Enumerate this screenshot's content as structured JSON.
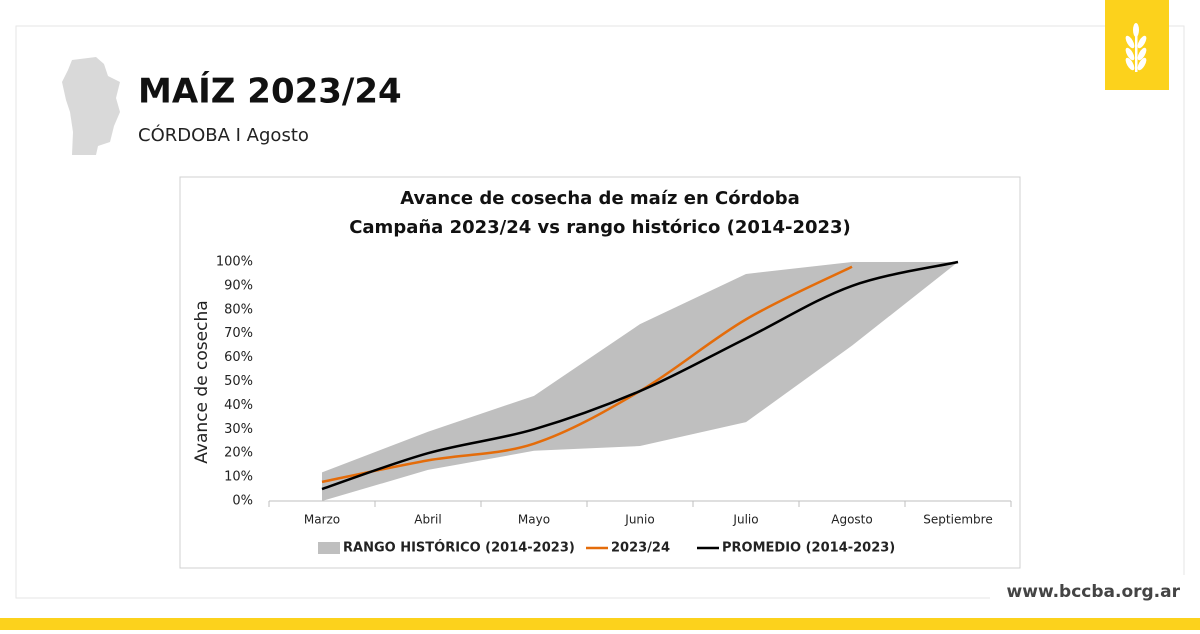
{
  "header": {
    "title": "MAÍZ 2023/24",
    "subtitle": "CÓRDOBA I Agosto"
  },
  "footer": {
    "url": "www.bccba.org.ar"
  },
  "chart_data": {
    "type": "line",
    "title": "Avance de cosecha de maíz en Córdoba",
    "subtitle": "Campaña 2023/24 vs rango histórico (2014-2023)",
    "y_label": "Avance de cosecha",
    "categories": [
      "Marzo",
      "Abril",
      "Mayo",
      "Junio",
      "Julio",
      "Agosto",
      "Septiembre"
    ],
    "series": [
      {
        "name": "RANGO HISTÓRICO (2014-2023)",
        "color": "#bfbfbf",
        "low": [
          0,
          13,
          21,
          23,
          33,
          65,
          100
        ],
        "high": [
          12,
          29,
          44,
          74,
          95,
          100,
          100
        ]
      },
      {
        "name": "2023/24",
        "color": "#e46c0a",
        "values": [
          8,
          17,
          24,
          46,
          76,
          98,
          null
        ]
      },
      {
        "name": "PROMEDIO (2014-2023)",
        "color": "#000000",
        "values": [
          5,
          20,
          30,
          46,
          68,
          90,
          100
        ]
      }
    ],
    "ylim": [
      0,
      100
    ],
    "yticks": [
      {
        "value": 0,
        "label": "0%"
      },
      {
        "value": 10,
        "label": "10%"
      },
      {
        "value": 20,
        "label": "20%"
      },
      {
        "value": 30,
        "label": "30%"
      },
      {
        "value": 40,
        "label": "40%"
      },
      {
        "value": 50,
        "label": "50%"
      },
      {
        "value": 60,
        "label": "60%"
      },
      {
        "value": 70,
        "label": "70%"
      },
      {
        "value": 80,
        "label": "80%"
      },
      {
        "value": 90,
        "label": "90%"
      },
      {
        "value": 100,
        "label": "100%"
      }
    ],
    "grid": false,
    "legend": "bottom"
  }
}
